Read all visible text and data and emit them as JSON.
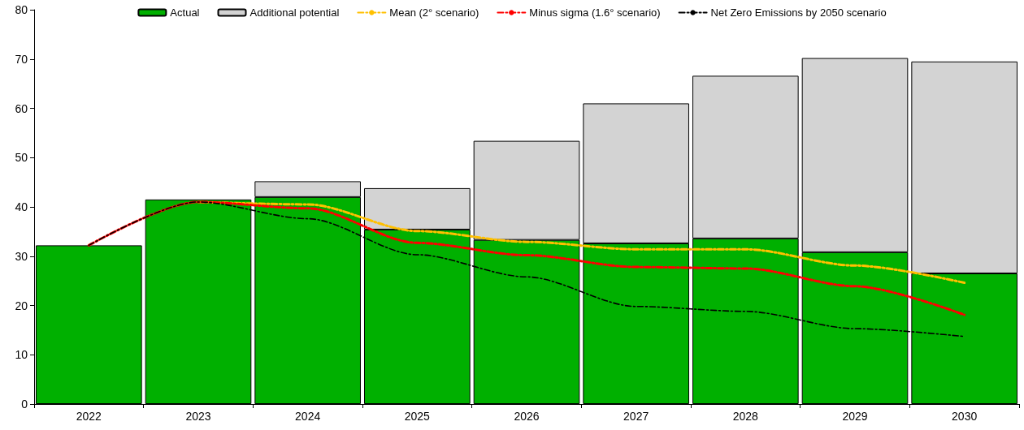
{
  "chart_data": {
    "type": "bar",
    "stacked": true,
    "categories": [
      "2022",
      "2023",
      "2024",
      "2025",
      "2026",
      "2027",
      "2028",
      "2029",
      "2030"
    ],
    "series": [
      {
        "name": "Actual",
        "color": "#00b000",
        "values": [
          32.2,
          41.5,
          42.0,
          35.4,
          33.3,
          32.6,
          33.6,
          30.8,
          26.5
        ]
      },
      {
        "name": "Additional potential",
        "color": "#d3d3d3",
        "values": [
          null,
          null,
          3.2,
          8.4,
          20.1,
          28.4,
          33.0,
          39.4,
          43.0
        ]
      },
      {
        "name": "Mean (2° scenario)",
        "type": "line",
        "color": "#ffc000",
        "values": [
          null,
          41.0,
          40.5,
          35.1,
          32.9,
          31.4,
          31.4,
          28.1,
          24.6
        ]
      },
      {
        "name": "Minus sigma (1.6° scenario)",
        "type": "line",
        "color": "#ff0000",
        "values": [
          32.2,
          41.0,
          39.7,
          32.7,
          30.2,
          27.8,
          27.5,
          23.9,
          18.1
        ]
      },
      {
        "name": "Net Zero Emissions by 2050 scenario",
        "type": "line",
        "color": "#000000",
        "values": [
          32.2,
          41.0,
          37.6,
          30.3,
          25.8,
          19.8,
          18.8,
          15.3,
          13.7
        ]
      }
    ],
    "ylim": [
      0,
      80
    ],
    "yticks": [
      0,
      10,
      20,
      30,
      40,
      50,
      60,
      70,
      80
    ],
    "grid": false,
    "legend": "top",
    "marker": "none",
    "line_style": "dashed"
  }
}
